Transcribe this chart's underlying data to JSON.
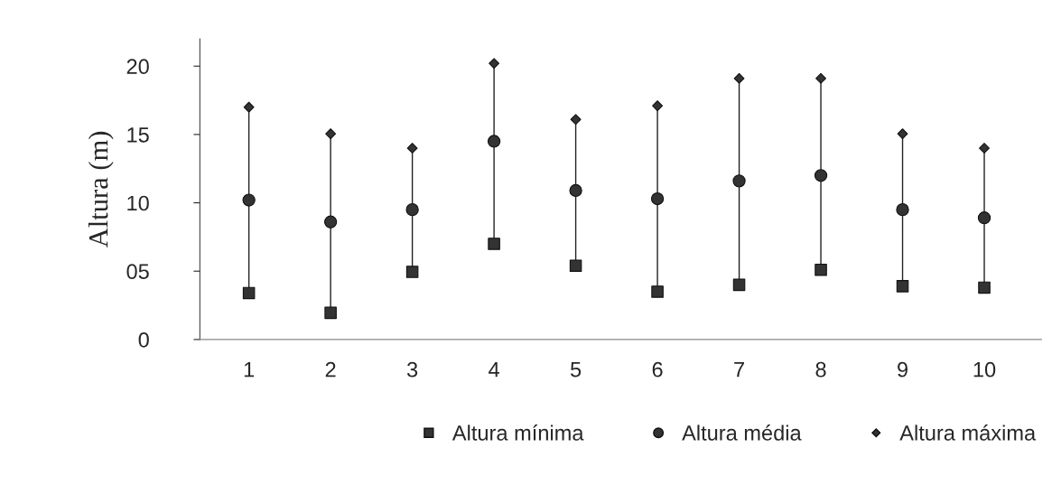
{
  "chart_data": {
    "type": "scatter",
    "ylabel": "Altura (m)",
    "categories": [
      "1",
      "2",
      "3",
      "4",
      "5",
      "6",
      "7",
      "8",
      "9",
      "10"
    ],
    "series": [
      {
        "name": "Altura mínima",
        "color": "#333333",
        "marker": "square",
        "values": [
          3.4,
          1.95,
          4.95,
          7.0,
          5.4,
          3.5,
          4.0,
          5.1,
          3.9,
          3.8
        ]
      },
      {
        "name": "Altura média",
        "color": "#333333",
        "marker": "circle",
        "values": [
          10.2,
          8.6,
          9.5,
          14.5,
          10.9,
          10.3,
          11.6,
          12.0,
          9.5,
          8.9
        ]
      },
      {
        "name": "Altura máxima",
        "color": "#333333",
        "marker": "diamond",
        "values": [
          17.0,
          15.05,
          14.0,
          20.2,
          16.1,
          17.1,
          19.1,
          19.1,
          15.05,
          14.0
        ]
      }
    ],
    "ylim": [
      0,
      22
    ],
    "yticks": [
      0,
      {
        "value": 5,
        "label": "05"
      },
      10,
      15,
      20
    ],
    "grid": false,
    "legend": "bottom"
  }
}
